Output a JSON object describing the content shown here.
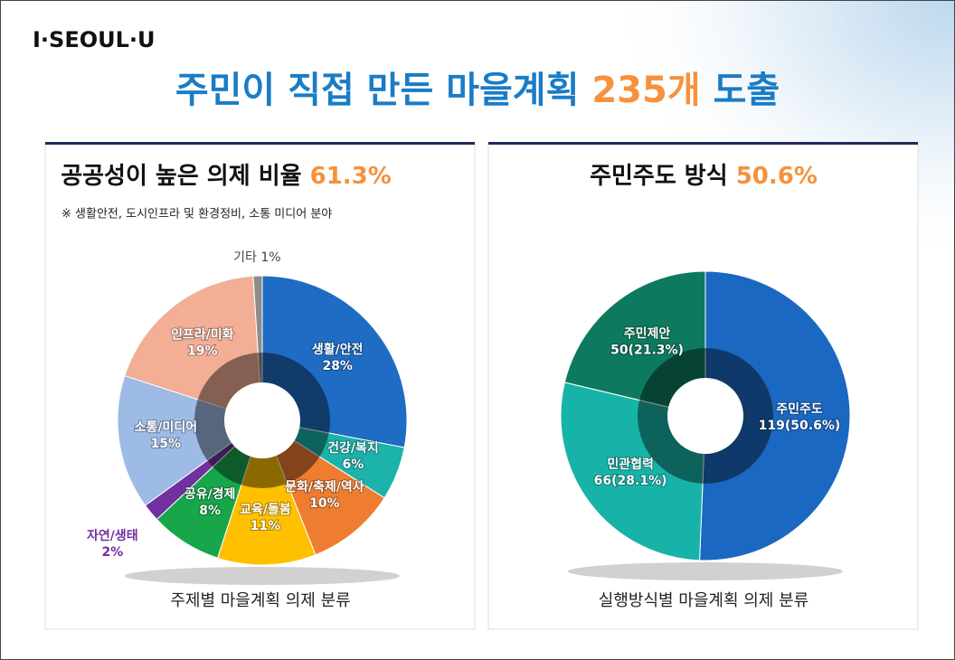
{
  "logo": "I·SEOUL·U",
  "title": {
    "prefix": "주민이 직접 만든 마을계획",
    "highlight": "235개",
    "suffix": "도출"
  },
  "chart_data": [
    {
      "type": "donut",
      "title": "공공성이 높은 의제 비율",
      "highlight": "61.3%",
      "note": "※ 생활안전, 도시인프라 및 환경정비, 소통 미디어 분야",
      "caption": "주제별 마을계획 의제 분류",
      "categories": [
        "생활/안전",
        "건강/복지",
        "문화/축제/역사",
        "교육/돌봄",
        "공유/경제",
        "자연/생태",
        "소통/미디어",
        "인프라/미화",
        "기타"
      ],
      "values": [
        28,
        6,
        10,
        11,
        8,
        2,
        15,
        19,
        1
      ],
      "value_labels": [
        "28%",
        "6%",
        "10%",
        "11%",
        "8%",
        "2%",
        "15%",
        "19%",
        "1%"
      ],
      "colors": [
        "#1e6cc4",
        "#1bb3ab",
        "#ef7d30",
        "#ffc000",
        "#17a64a",
        "#7030a0",
        "#9dbbe5",
        "#f3ae96",
        "#8c8c8c"
      ]
    },
    {
      "type": "donut",
      "title": "주민주도 방식",
      "highlight": "50.6%",
      "caption": "실행방식별 마을계획 의제 분류",
      "categories": [
        "주민주도",
        "민관협력",
        "주민제안"
      ],
      "values": [
        119,
        66,
        50
      ],
      "value_labels": [
        "119(50.6%)",
        "66(28.1%)",
        "50(21.3%)"
      ],
      "colors": [
        "#1a68c2",
        "#18b3a8",
        "#0d7a5f"
      ]
    }
  ]
}
